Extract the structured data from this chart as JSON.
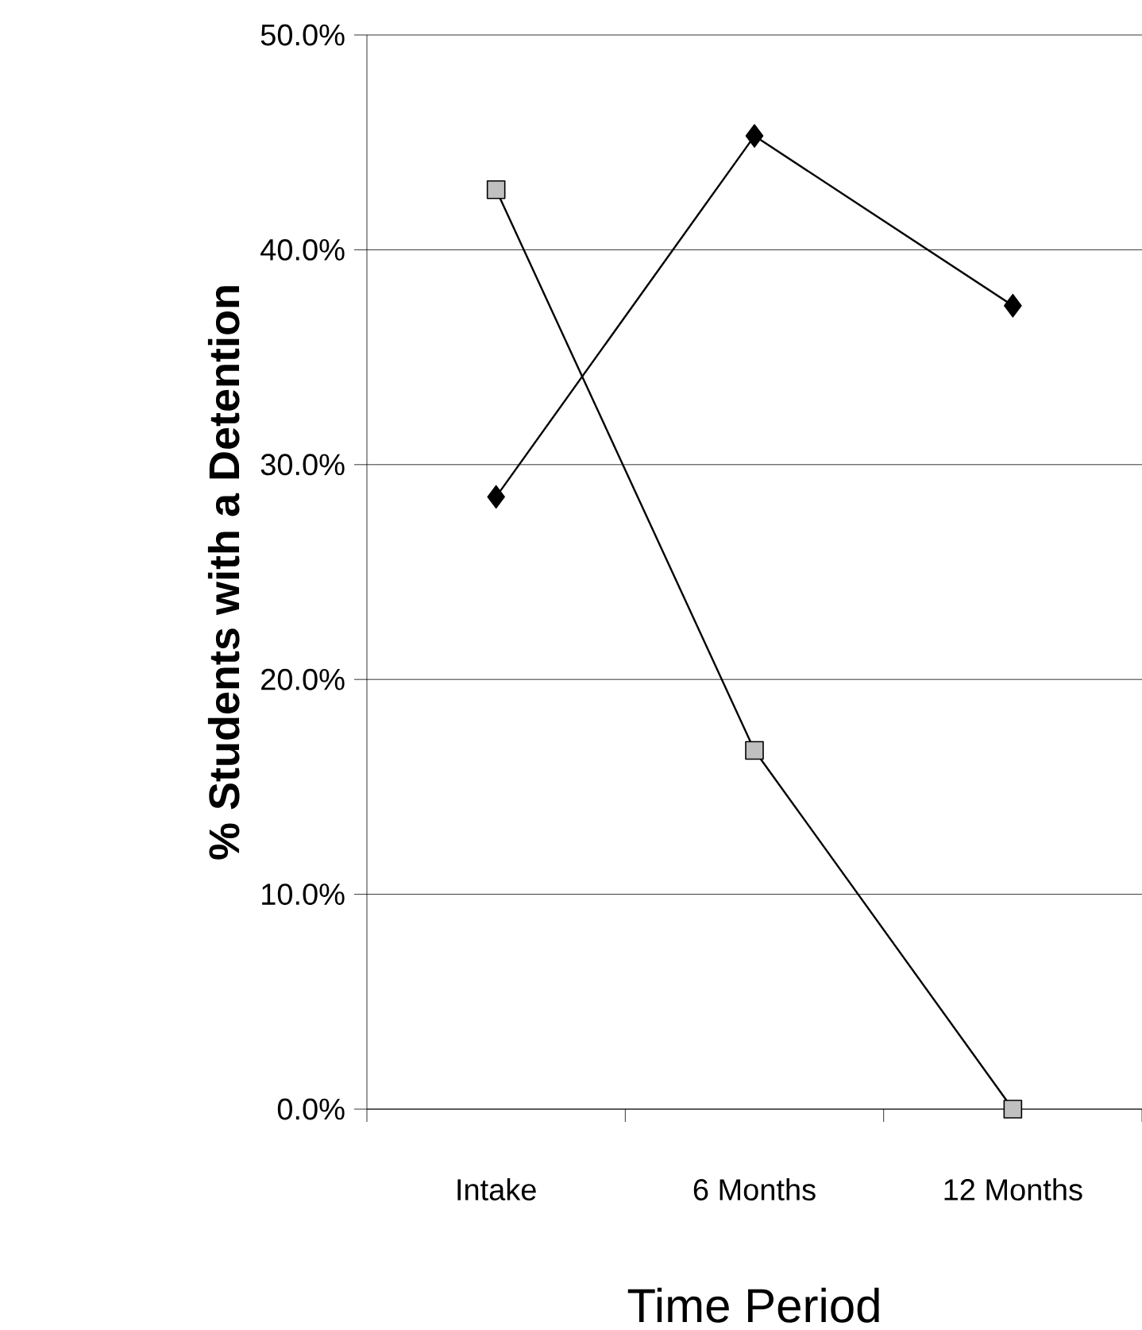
{
  "chart_data": {
    "type": "line",
    "xlabel": "Time Period",
    "ylabel": "% Students with a Detention",
    "categories": [
      "Intake",
      "6 Months",
      "12 Months"
    ],
    "series": [
      {
        "color": "#000000",
        "marker": "diamond",
        "values": [
          28.5,
          45.3,
          37.4
        ]
      },
      {
        "color": "#c0c0c0",
        "marker": "square",
        "values": [
          42.8,
          16.7,
          0.0
        ]
      }
    ],
    "ylim": [
      0,
      50
    ],
    "yticks": [
      {
        "value": 0,
        "label": "0.0%"
      },
      {
        "value": 10,
        "label": "10.0%"
      },
      {
        "value": 20,
        "label": "20.0%"
      },
      {
        "value": 30,
        "label": "30.0%"
      },
      {
        "value": 40,
        "label": "40.0%"
      },
      {
        "value": 50,
        "label": "50.0%"
      }
    ],
    "grid": "y",
    "line_style": "solid"
  }
}
